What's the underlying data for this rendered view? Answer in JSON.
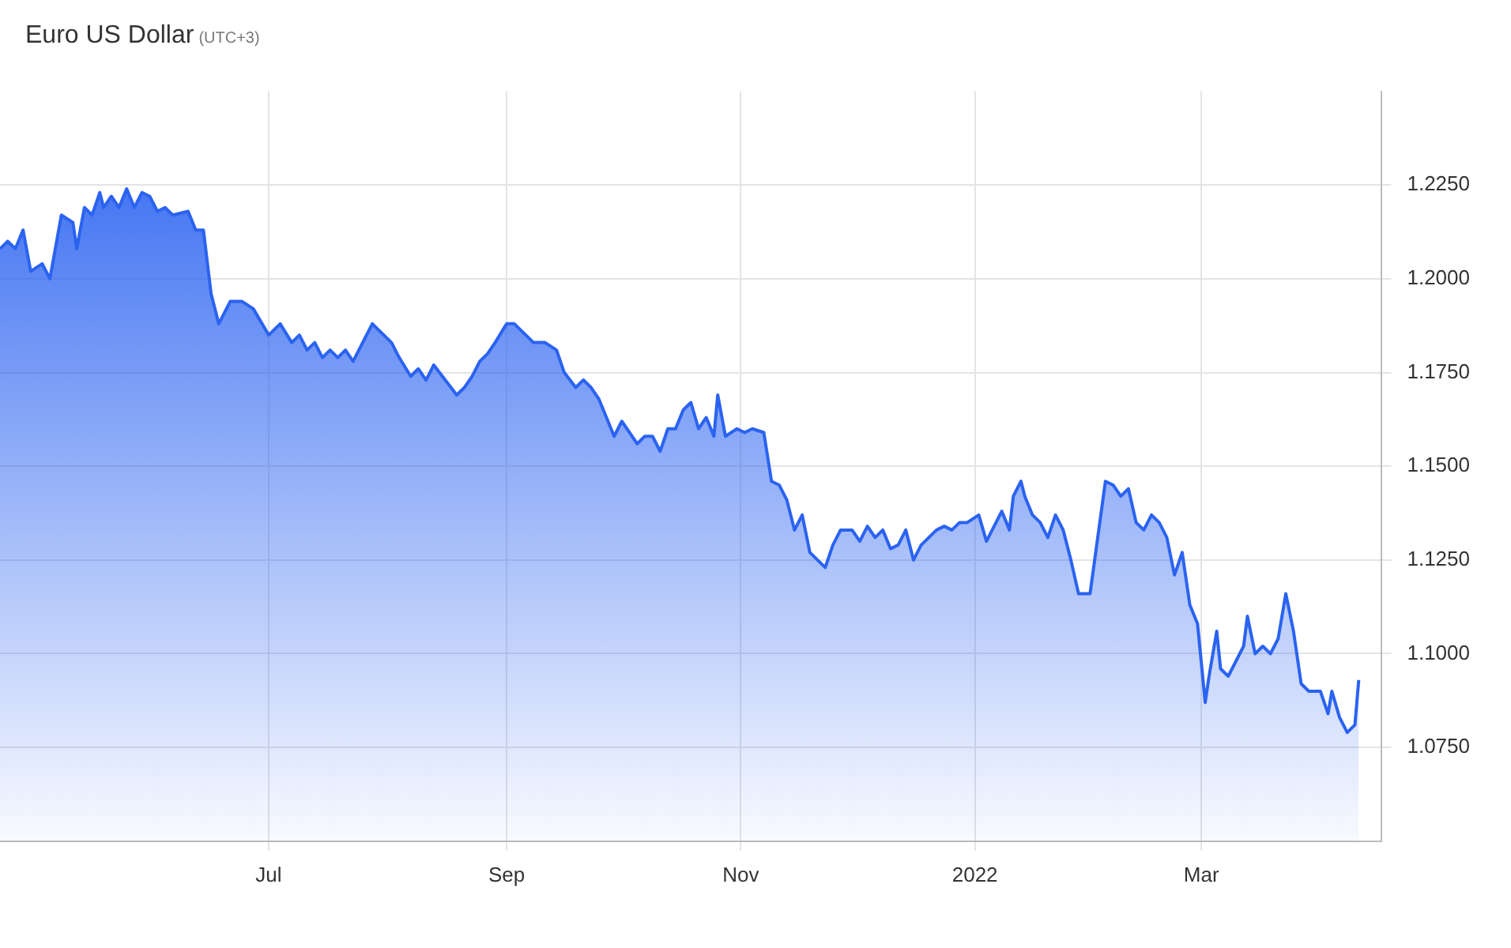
{
  "chart_data": {
    "type": "area",
    "title": "Euro US Dollar",
    "subtitle": "(UTC+3)",
    "x": [
      "2021-04-22",
      "2021-04-24",
      "2021-04-26",
      "2021-04-28",
      "2021-04-30",
      "2021-05-03",
      "2021-05-05",
      "2021-05-08",
      "2021-05-11",
      "2021-05-12",
      "2021-05-14",
      "2021-05-16",
      "2021-05-18",
      "2021-05-19",
      "2021-05-21",
      "2021-05-23",
      "2021-05-25",
      "2021-05-27",
      "2021-05-29",
      "2021-05-31",
      "2021-06-02",
      "2021-06-04",
      "2021-06-06",
      "2021-06-10",
      "2021-06-12",
      "2021-06-14",
      "2021-06-16",
      "2021-06-18",
      "2021-06-21",
      "2021-06-24",
      "2021-06-27",
      "2021-07-01",
      "2021-07-04",
      "2021-07-07",
      "2021-07-09",
      "2021-07-11",
      "2021-07-13",
      "2021-07-15",
      "2021-07-17",
      "2021-07-19",
      "2021-07-21",
      "2021-07-23",
      "2021-07-26",
      "2021-07-28",
      "2021-07-31",
      "2021-08-02",
      "2021-08-04",
      "2021-08-07",
      "2021-08-09",
      "2021-08-11",
      "2021-08-13",
      "2021-08-16",
      "2021-08-19",
      "2021-08-21",
      "2021-08-23",
      "2021-08-25",
      "2021-08-27",
      "2021-08-29",
      "2021-09-01",
      "2021-09-03",
      "2021-09-06",
      "2021-09-08",
      "2021-09-11",
      "2021-09-14",
      "2021-09-16",
      "2021-09-19",
      "2021-09-21",
      "2021-09-23",
      "2021-09-25",
      "2021-09-27",
      "2021-09-29",
      "2021-10-01",
      "2021-10-03",
      "2021-10-05",
      "2021-10-07",
      "2021-10-09",
      "2021-10-11",
      "2021-10-13",
      "2021-10-15",
      "2021-10-17",
      "2021-10-19",
      "2021-10-21",
      "2021-10-23",
      "2021-10-25",
      "2021-10-26",
      "2021-10-28",
      "2021-10-31",
      "2021-11-02",
      "2021-11-04",
      "2021-11-07",
      "2021-11-09",
      "2021-11-11",
      "2021-11-13",
      "2021-11-15",
      "2021-11-17",
      "2021-11-19",
      "2021-11-21",
      "2021-11-23",
      "2021-11-25",
      "2021-11-27",
      "2021-11-30",
      "2021-12-02",
      "2021-12-04",
      "2021-12-06",
      "2021-12-08",
      "2021-12-10",
      "2021-12-12",
      "2021-12-14",
      "2021-12-16",
      "2021-12-18",
      "2021-12-20",
      "2021-12-22",
      "2021-12-24",
      "2021-12-26",
      "2021-12-28",
      "2021-12-30",
      "2022-01-02",
      "2022-01-04",
      "2022-01-06",
      "2022-01-08",
      "2022-01-10",
      "2022-01-11",
      "2022-01-13",
      "2022-01-14",
      "2022-01-16",
      "2022-01-18",
      "2022-01-20",
      "2022-01-22",
      "2022-01-24",
      "2022-01-26",
      "2022-01-28",
      "2022-01-31",
      "2022-02-02",
      "2022-02-04",
      "2022-02-06",
      "2022-02-08",
      "2022-02-10",
      "2022-02-12",
      "2022-02-14",
      "2022-02-16",
      "2022-02-18",
      "2022-02-20",
      "2022-02-22",
      "2022-02-24",
      "2022-02-26",
      "2022-02-28",
      "2022-03-02",
      "2022-03-03",
      "2022-03-05",
      "2022-03-06",
      "2022-03-08",
      "2022-03-10",
      "2022-03-12",
      "2022-03-13",
      "2022-03-15",
      "2022-03-17",
      "2022-03-19",
      "2022-03-21",
      "2022-03-23",
      "2022-03-25",
      "2022-03-27",
      "2022-03-29",
      "2022-04-01",
      "2022-04-03",
      "2022-04-04",
      "2022-04-06",
      "2022-04-08",
      "2022-04-10",
      "2022-04-11"
    ],
    "series": [
      {
        "color": "#2b63f0",
        "values": [
          1.208,
          1.21,
          1.208,
          1.213,
          1.202,
          1.204,
          1.2,
          1.217,
          1.215,
          1.208,
          1.219,
          1.217,
          1.223,
          1.219,
          1.222,
          1.219,
          1.224,
          1.219,
          1.223,
          1.222,
          1.218,
          1.219,
          1.217,
          1.218,
          1.213,
          1.213,
          1.196,
          1.188,
          1.194,
          1.194,
          1.192,
          1.185,
          1.188,
          1.183,
          1.185,
          1.181,
          1.183,
          1.179,
          1.181,
          1.179,
          1.181,
          1.178,
          1.184,
          1.188,
          1.185,
          1.183,
          1.179,
          1.174,
          1.176,
          1.173,
          1.177,
          1.173,
          1.169,
          1.171,
          1.174,
          1.178,
          1.18,
          1.183,
          1.188,
          1.188,
          1.185,
          1.183,
          1.183,
          1.181,
          1.175,
          1.171,
          1.173,
          1.171,
          1.168,
          1.163,
          1.158,
          1.162,
          1.159,
          1.156,
          1.158,
          1.158,
          1.154,
          1.16,
          1.16,
          1.165,
          1.167,
          1.16,
          1.163,
          1.158,
          1.169,
          1.158,
          1.16,
          1.159,
          1.16,
          1.159,
          1.146,
          1.145,
          1.141,
          1.133,
          1.137,
          1.127,
          1.125,
          1.123,
          1.129,
          1.133,
          1.133,
          1.13,
          1.134,
          1.131,
          1.133,
          1.128,
          1.129,
          1.133,
          1.125,
          1.129,
          1.131,
          1.133,
          1.134,
          1.133,
          1.135,
          1.135,
          1.137,
          1.13,
          1.134,
          1.138,
          1.133,
          1.142,
          1.146,
          1.142,
          1.137,
          1.135,
          1.131,
          1.137,
          1.133,
          1.125,
          1.116,
          1.116,
          1.131,
          1.146,
          1.145,
          1.142,
          1.144,
          1.135,
          1.133,
          1.137,
          1.135,
          1.131,
          1.121,
          1.127,
          1.113,
          1.108,
          1.087,
          1.094,
          1.106,
          1.096,
          1.094,
          1.098,
          1.102,
          1.11,
          1.1,
          1.102,
          1.1,
          1.104,
          1.116,
          1.106,
          1.092,
          1.09,
          1.09,
          1.084,
          1.09,
          1.083,
          1.079,
          1.081,
          1.093
        ]
      }
    ],
    "xlim": [
      "2021-04-22",
      "2022-04-17"
    ],
    "xticks": [
      {
        "value": "2021-07-01",
        "label": "Jul"
      },
      {
        "value": "2021-09-01",
        "label": "Sep"
      },
      {
        "value": "2021-11-01",
        "label": "Nov"
      },
      {
        "value": "2022-01-01",
        "label": "2022"
      },
      {
        "value": "2022-03-01",
        "label": "Mar"
      }
    ],
    "ylim": [
      1.05,
      1.25
    ],
    "yticks": [
      {
        "value": 1.075,
        "label": "1.0750"
      },
      {
        "value": 1.1,
        "label": "1.1000"
      },
      {
        "value": 1.125,
        "label": "1.1250"
      },
      {
        "value": 1.15,
        "label": "1.1500"
      },
      {
        "value": 1.175,
        "label": "1.1750"
      },
      {
        "value": 1.2,
        "label": "1.2000"
      },
      {
        "value": 1.225,
        "label": "1.2250"
      }
    ],
    "grid": true,
    "legend": false,
    "marker": "none",
    "line_style": "solid"
  }
}
